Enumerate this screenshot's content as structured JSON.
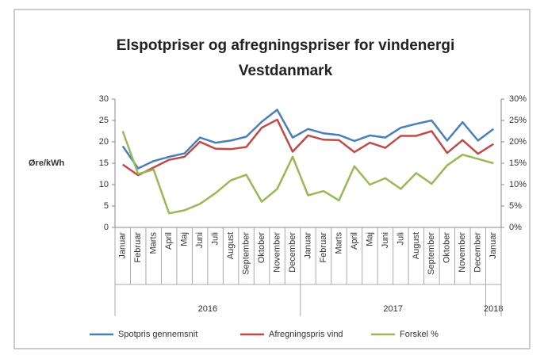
{
  "chart_data": {
    "type": "line",
    "title": [
      "Elspotpriser  og afregningspriser  for vindenergi",
      "Vestdanmark"
    ],
    "y_label": "Øre/kWh",
    "categories": [
      "Januar",
      "Februar",
      "Marts",
      "April",
      "Maj",
      "Juni",
      "Juli",
      "August",
      "September",
      "Oktober",
      "November",
      "December",
      "Januar",
      "Februar",
      "Marts",
      "April",
      "Maj",
      "Juni",
      "Juli",
      "August",
      "September",
      "Oktober",
      "November",
      "December",
      "Januar"
    ],
    "x_groups": [
      "2016",
      "2017",
      "2018"
    ],
    "series": [
      {
        "name": "Spotpris gennemsnit",
        "color": "#4a7ebb",
        "values": [
          19,
          13.8,
          15.5,
          16.5,
          17.3,
          21,
          19.8,
          20.3,
          21.2,
          24.7,
          27.5,
          21,
          23,
          22,
          21.6,
          20.2,
          21.5,
          21,
          23.3,
          24.2,
          25,
          20.3,
          24.6,
          20.3,
          23
        ]
      },
      {
        "name": "Afregningspris vind",
        "color": "#be4b48",
        "values": [
          14.7,
          12.2,
          14,
          15.8,
          16.5,
          20,
          18.4,
          18.3,
          18.8,
          23.3,
          25.2,
          17.7,
          21.5,
          20.5,
          20.4,
          17.6,
          19.8,
          18.6,
          21.4,
          21.4,
          22.5,
          17.4,
          20.4,
          17.2,
          19.5
        ]
      },
      {
        "name": "Forskel %",
        "color": "#98b954",
        "axis": "y2",
        "values": [
          22.5,
          12.5,
          13.5,
          3.3,
          4,
          5.5,
          8,
          11,
          12.3,
          6,
          9,
          16.5,
          7.5,
          8.5,
          6.3,
          14.3,
          10,
          11.5,
          9,
          12.7,
          10.2,
          14.5,
          17,
          16,
          15
        ]
      }
    ],
    "ylim": [
      0,
      30
    ],
    "yticks": [
      0,
      5,
      10,
      15,
      20,
      25,
      30
    ],
    "y2lim": [
      0,
      30
    ],
    "y2ticks": [
      {
        "value": 0,
        "label": "0%"
      },
      {
        "value": 5,
        "label": "5%"
      },
      {
        "value": 10,
        "label": "10%"
      },
      {
        "value": 15,
        "label": "15%"
      },
      {
        "value": 20,
        "label": "20%"
      },
      {
        "value": 25,
        "label": "25%"
      },
      {
        "value": 30,
        "label": "30%"
      }
    ],
    "legend": "bottom"
  }
}
